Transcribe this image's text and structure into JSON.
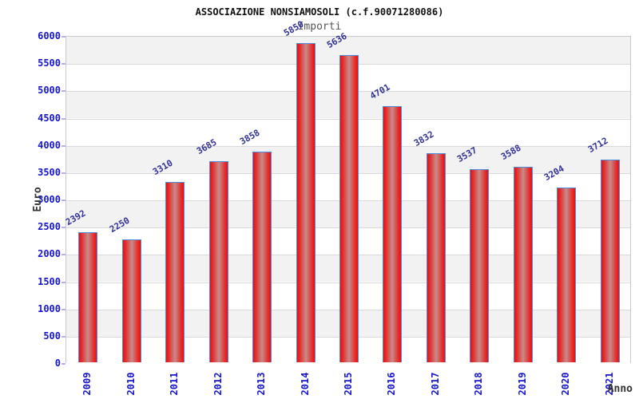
{
  "chart_data": {
    "type": "bar",
    "title": "ASSOCIAZIONE NONSIAMOSOLI (c.f.90071280086)",
    "subtitle": "Importi",
    "xlabel": "Anno",
    "ylabel": "Euro",
    "categories": [
      "2009",
      "2010",
      "2011",
      "2012",
      "2013",
      "2014",
      "2015",
      "2016",
      "2017",
      "2018",
      "2019",
      "2020",
      "2021"
    ],
    "values": [
      2392,
      2250,
      3310,
      3685,
      3858,
      5850,
      5636,
      4701,
      3832,
      3537,
      3588,
      3204,
      3712
    ],
    "ylim": [
      0,
      6000
    ],
    "ytick_step": 500,
    "ytick_labels": [
      "0",
      "500",
      "1000",
      "1500",
      "2000",
      "2500",
      "3000",
      "3500",
      "4000",
      "4500",
      "5000",
      "5500",
      "6000"
    ],
    "grid": "horizontal-bands",
    "legend": "none",
    "colors": {
      "bar_edge": "#e90f0f",
      "bar_center": "#c98b8b",
      "bar_border": "#4a90e2",
      "tick_label_blue": "#1515cd",
      "value_label_blue": "#323296",
      "band_gray": "#f2f2f2",
      "band_white": "#ffffff",
      "gridline": "#d9d9d9",
      "axis_tick_lavender": "#b9b0e8",
      "plot_border": "#c9c9c9",
      "axis_title_gray": "#333333"
    }
  }
}
